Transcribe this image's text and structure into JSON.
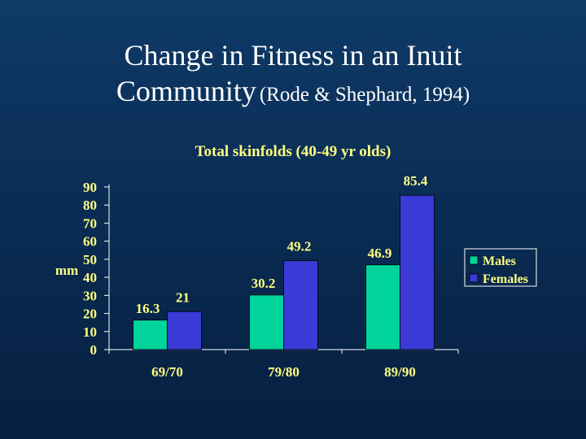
{
  "slide": {
    "title_line1": "Change in Fitness in an Inuit",
    "title_line2_main": "Community",
    "title_line2_ref": "(Rode & Shephard, 1994)"
  },
  "colors": {
    "males": "#00d49a",
    "females": "#3a3ad6",
    "text": "#ffff80",
    "axis": "#ffffff"
  },
  "chart_data": {
    "type": "bar",
    "title": "Total skinfolds (40-49 yr olds)",
    "ylabel": "mm",
    "xlabel": "",
    "categories": [
      "69/70",
      "79/80",
      "89/90"
    ],
    "ylim": [
      0,
      90
    ],
    "yticks": [
      0,
      10,
      20,
      30,
      40,
      50,
      60,
      70,
      80,
      90
    ],
    "series": [
      {
        "name": "Males",
        "values": [
          16.3,
          30.2,
          46.9
        ],
        "labels": [
          "16.3",
          "30.2",
          "46.9"
        ]
      },
      {
        "name": "Females",
        "values": [
          21,
          49.2,
          85.4
        ],
        "labels": [
          "21",
          "49.2",
          "85.4"
        ]
      }
    ],
    "legend_position": "right",
    "grid": false
  }
}
